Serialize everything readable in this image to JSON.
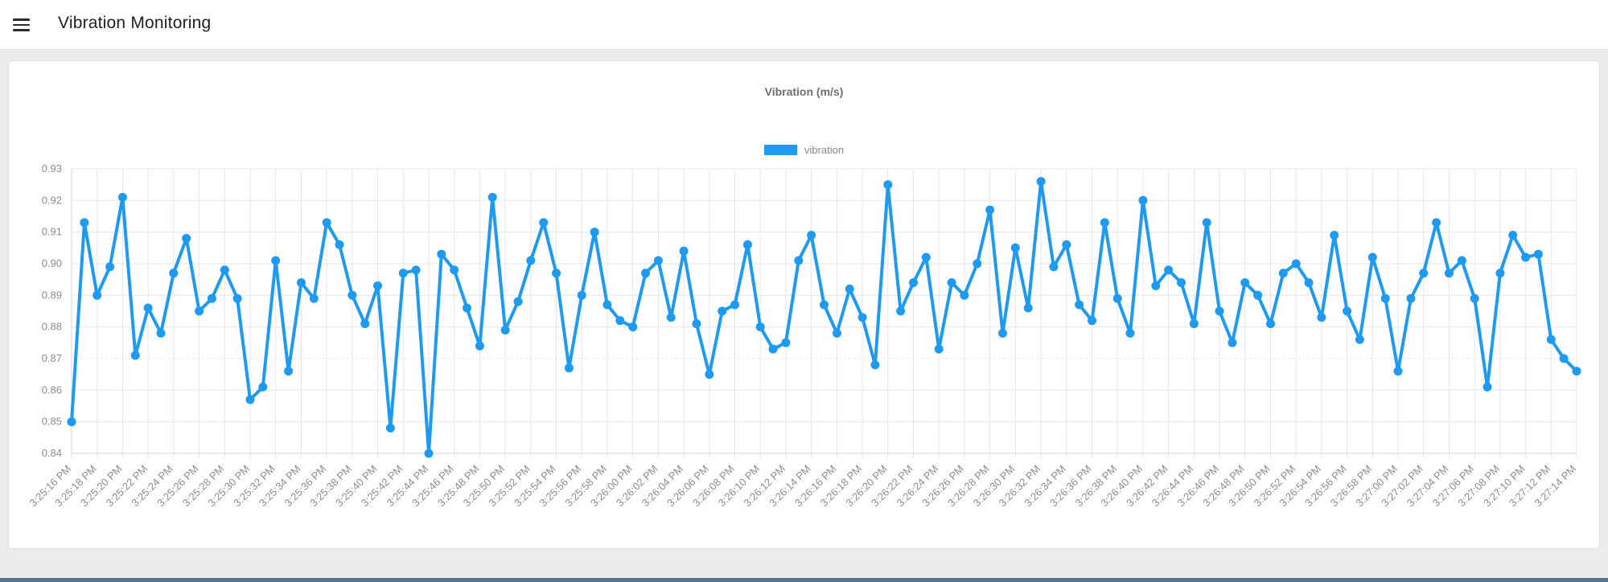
{
  "header": {
    "title": "Vibration Monitoring"
  },
  "colors": {
    "accent_blue": "#1e9af0",
    "grid": "#e6e6e6",
    "axis": "#d6d6d6",
    "tick_text": "#8c8c8c",
    "title_text": "#6e6e6e",
    "page_bg": "#ececec",
    "bottom_bar": "#517593"
  },
  "chart_data": {
    "type": "line",
    "title": "Vibration (m/s)",
    "legend": [
      {
        "label": "vibration",
        "color": "#1e9af0"
      }
    ],
    "legend_position": "top",
    "grid": true,
    "ylim": [
      0.84,
      0.93
    ],
    "y_tick_step": 0.01,
    "dashed_gridline_at": 0.87,
    "x_label_every_n_points": 2,
    "x_labels": [
      "3:25:16 PM",
      "3:25:18 PM",
      "3:25:20 PM",
      "3:25:22 PM",
      "3:25:24 PM",
      "3:25:26 PM",
      "3:25:28 PM",
      "3:25:30 PM",
      "3:25:32 PM",
      "3:25:34 PM",
      "3:25:36 PM",
      "3:25:38 PM",
      "3:25:40 PM",
      "3:25:42 PM",
      "3:25:44 PM",
      "3:25:46 PM",
      "3:25:48 PM",
      "3:25:50 PM",
      "3:25:52 PM",
      "3:25:54 PM",
      "3:25:56 PM",
      "3:25:58 PM",
      "3:26:00 PM",
      "3:26:02 PM",
      "3:26:04 PM",
      "3:26:06 PM",
      "3:26:08 PM",
      "3:26:10 PM",
      "3:26:12 PM",
      "3:26:14 PM",
      "3:26:16 PM",
      "3:26:18 PM",
      "3:26:20 PM",
      "3:26:22 PM",
      "3:26:24 PM",
      "3:26:26 PM",
      "3:26:28 PM",
      "3:26:30 PM",
      "3:26:32 PM",
      "3:26:34 PM",
      "3:26:36 PM",
      "3:26:38 PM",
      "3:26:40 PM",
      "3:26:42 PM",
      "3:26:44 PM",
      "3:26:46 PM",
      "3:26:48 PM",
      "3:26:50 PM",
      "3:26:52 PM",
      "3:26:54 PM",
      "3:26:56 PM",
      "3:26:58 PM",
      "3:27:00 PM",
      "3:27:02 PM",
      "3:27:04 PM",
      "3:27:06 PM",
      "3:27:08 PM",
      "3:27:10 PM",
      "3:27:12 PM",
      "3:27:14 PM"
    ],
    "series_name": "vibration",
    "values": [
      0.85,
      0.913,
      0.89,
      0.899,
      0.921,
      0.871,
      0.886,
      0.878,
      0.897,
      0.908,
      0.885,
      0.889,
      0.898,
      0.889,
      0.857,
      0.861,
      0.901,
      0.866,
      0.894,
      0.889,
      0.913,
      0.906,
      0.89,
      0.881,
      0.893,
      0.848,
      0.897,
      0.898,
      0.84,
      0.903,
      0.898,
      0.886,
      0.874,
      0.921,
      0.879,
      0.888,
      0.901,
      0.913,
      0.897,
      0.867,
      0.89,
      0.91,
      0.887,
      0.882,
      0.88,
      0.897,
      0.901,
      0.883,
      0.904,
      0.881,
      0.865,
      0.885,
      0.887,
      0.906,
      0.88,
      0.873,
      0.875,
      0.901,
      0.909,
      0.887,
      0.878,
      0.892,
      0.883,
      0.868,
      0.925,
      0.885,
      0.894,
      0.902,
      0.873,
      0.894,
      0.89,
      0.9,
      0.917,
      0.878,
      0.905,
      0.886,
      0.926,
      0.899,
      0.906,
      0.887,
      0.882,
      0.913,
      0.889,
      0.878,
      0.92,
      0.893,
      0.898,
      0.894,
      0.881,
      0.913,
      0.885,
      0.875,
      0.894,
      0.89,
      0.881,
      0.897,
      0.9,
      0.894,
      0.883,
      0.909,
      0.885,
      0.876,
      0.902,
      0.889,
      0.866,
      0.889,
      0.897,
      0.913,
      0.897,
      0.901,
      0.889,
      0.861,
      0.897,
      0.909,
      0.902,
      0.903,
      0.876,
      0.87,
      0.866
    ]
  }
}
